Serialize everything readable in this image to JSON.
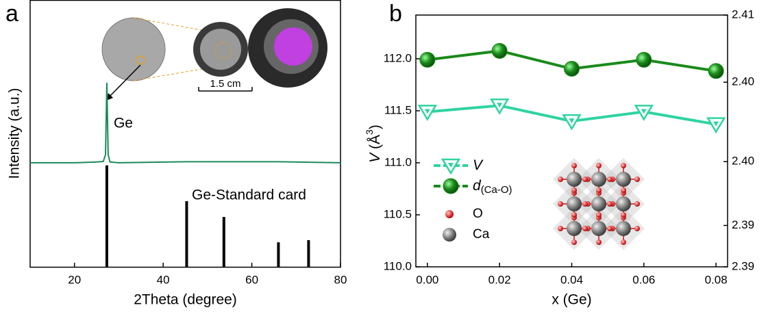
{
  "chart_data": [
    {
      "type": "line",
      "panel_label": "a",
      "xlabel": "2Theta (degree)",
      "ylabel": "Intensity (a.u.)",
      "xlim": [
        10,
        80
      ],
      "xticks": [
        20,
        40,
        60,
        80
      ],
      "ylim": [
        0,
        100
      ],
      "annotations": [
        "1.5 cm"
      ],
      "series": [
        {
          "name": "Ge",
          "style": "line",
          "color": "#1a8a5a",
          "x": [
            10,
            20,
            25,
            26.5,
            27,
            27.3,
            27.6,
            28,
            30,
            45.3,
            66,
            80
          ],
          "values": [
            39,
            39,
            39.3,
            39.5,
            42,
            69,
            42,
            39.3,
            39,
            39.4,
            39.4,
            39
          ]
        },
        {
          "name": "Ge-Standard card",
          "style": "stick",
          "color": "#000000",
          "x": [
            27.3,
            45.3,
            53.7,
            66.0,
            72.8
          ],
          "values": [
            38,
            24.6,
            18.7,
            9.2,
            10
          ]
        }
      ]
    },
    {
      "type": "line",
      "panel_label": "b",
      "xlabel": "x (Ge)",
      "ylabel": [
        "V",
        " (Å",
        "3",
        ")"
      ],
      "x": [
        0,
        0.02,
        0.04,
        0.06,
        0.08
      ],
      "xlim": [
        -0.0032,
        0.0832
      ],
      "xticks": [
        {
          "value": 0,
          "label": "0.00"
        },
        {
          "value": 0.02,
          "label": "0.02"
        },
        {
          "value": 0.04,
          "label": "0.04"
        },
        {
          "value": 0.06,
          "label": "0.06"
        },
        {
          "value": 0.08,
          "label": "0.08"
        }
      ],
      "ylim": [
        110,
        112.42
      ],
      "yticks": [
        {
          "value": 110,
          "label": "110.0"
        },
        110.5,
        {
          "value": 111,
          "label": "111.0"
        },
        111.5,
        {
          "value": 112,
          "label": "112.0"
        }
      ],
      "y2lim": [
        2.388,
        2.4105
      ],
      "y2ticks": [
        {
          "value": 2.388,
          "label": "2.39"
        },
        {
          "value": 2.3917,
          "label": "2.39"
        },
        {
          "value": 2.3974,
          "label": "2.40"
        },
        {
          "value": 2.4045,
          "label": "2.40"
        },
        {
          "value": 2.4105,
          "label": "2.41"
        }
      ],
      "series": [
        {
          "name": "V",
          "marker": "triangle",
          "color": "#2fd3a0",
          "values": [
            111.49,
            111.55,
            111.4,
            111.49,
            111.37
          ]
        },
        {
          "name": "d",
          "subscript": "(Ca-O)",
          "axis": "y2",
          "marker": "circle",
          "color": "#1a8a1a",
          "values": [
            2.4065,
            2.4073,
            2.4057,
            2.4065,
            2.4055
          ]
        }
      ],
      "crystal_legend": [
        "O",
        "Ca"
      ]
    }
  ]
}
